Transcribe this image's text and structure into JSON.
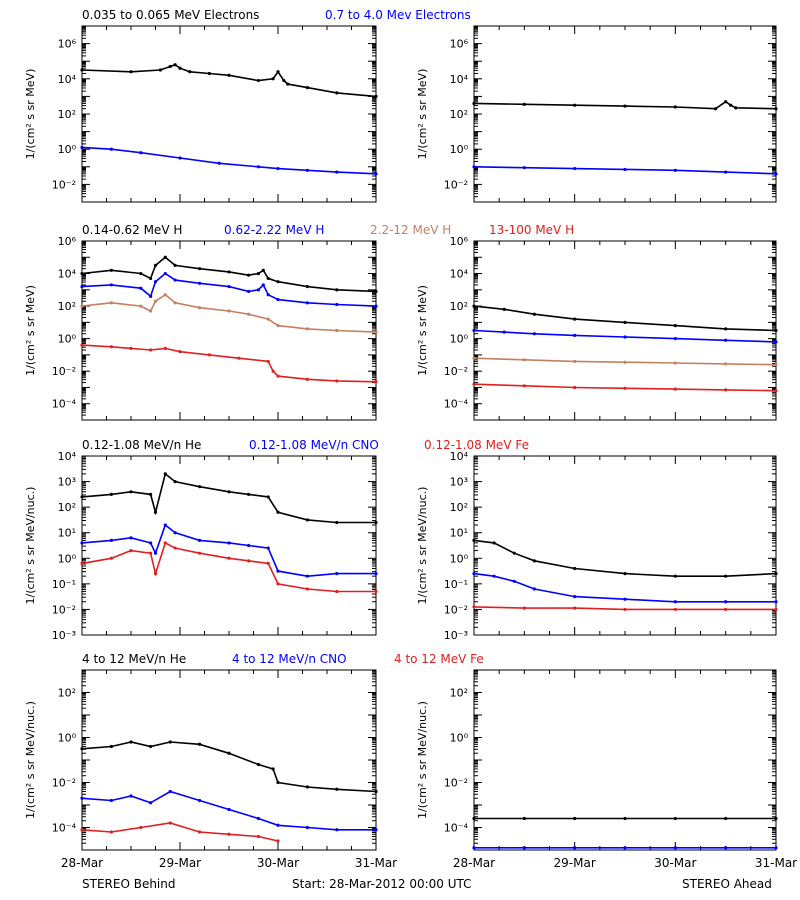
{
  "footer": {
    "left": "STEREO Behind",
    "center": "Start: 28-Mar-2012 00:00 UTC",
    "right": "STEREO Ahead"
  },
  "chart_data": [
    {
      "type": "scatter",
      "panel": "row1-left",
      "ylabel": "1/(cm² s sr MeV)",
      "log_y": true,
      "ylim_exp": [
        -3,
        7
      ],
      "y_ticks_exp": [
        -2,
        0,
        2,
        4,
        6
      ],
      "x_ticks": [
        "28-Mar",
        "29-Mar",
        "30-Mar",
        "31-Mar"
      ],
      "xlim": [
        0,
        3
      ],
      "legend": [
        {
          "text": "0.035 to 0.065 MeV Electrons",
          "color": "#000000"
        },
        {
          "text": "0.7 to 4.0 Mev Electrons",
          "color": "#0000ff"
        }
      ],
      "series": [
        {
          "name": "0.035 to 0.065 MeV Electrons",
          "color": "#000000",
          "x": [
            0,
            0.5,
            0.8,
            0.9,
            0.95,
            1.0,
            1.1,
            1.3,
            1.5,
            1.8,
            1.95,
            2.0,
            2.06,
            2.1,
            2.3,
            2.6,
            3.0
          ],
          "y": [
            4.5,
            4.4,
            4.5,
            4.7,
            4.8,
            4.6,
            4.4,
            4.3,
            4.2,
            3.9,
            4.0,
            4.4,
            3.9,
            3.7,
            3.5,
            3.2,
            3.0
          ]
        },
        {
          "name": "0.7 to 4.0 Mev Electrons",
          "color": "#0000ff",
          "x": [
            0,
            0.3,
            0.6,
            1.0,
            1.4,
            1.8,
            2.0,
            2.3,
            2.6,
            3.0
          ],
          "y": [
            0.1,
            0.0,
            -0.2,
            -0.5,
            -0.8,
            -1.0,
            -1.1,
            -1.2,
            -1.3,
            -1.4
          ]
        }
      ]
    },
    {
      "type": "scatter",
      "panel": "row1-right",
      "ylabel": "1/(cm² s sr MeV)",
      "log_y": true,
      "ylim_exp": [
        -3,
        7
      ],
      "y_ticks_exp": [
        -2,
        0,
        2,
        4,
        6
      ],
      "x_ticks": [
        "28-Mar",
        "29-Mar",
        "30-Mar",
        "31-Mar"
      ],
      "xlim": [
        0,
        3
      ],
      "series": [
        {
          "name": "0.035 to 0.065 MeV Electrons",
          "color": "#000000",
          "x": [
            0,
            0.5,
            1.0,
            1.5,
            2.0,
            2.4,
            2.5,
            2.55,
            2.6,
            3.0
          ],
          "y": [
            2.6,
            2.55,
            2.5,
            2.45,
            2.4,
            2.3,
            2.7,
            2.5,
            2.35,
            2.3
          ]
        },
        {
          "name": "0.7 to 4.0 Mev Electrons",
          "color": "#0000ff",
          "x": [
            0,
            0.5,
            1.0,
            1.5,
            2.0,
            2.5,
            3.0
          ],
          "y": [
            -1.0,
            -1.05,
            -1.1,
            -1.15,
            -1.2,
            -1.3,
            -1.4
          ]
        }
      ]
    },
    {
      "type": "scatter",
      "panel": "row2-left",
      "ylabel": "1/(cm² s sr MeV)",
      "log_y": true,
      "ylim_exp": [
        -5,
        6
      ],
      "y_ticks_exp": [
        -4,
        -2,
        0,
        2,
        4,
        6
      ],
      "x_ticks": [
        "28-Mar",
        "29-Mar",
        "30-Mar",
        "31-Mar"
      ],
      "xlim": [
        0,
        3
      ],
      "legend": [
        {
          "text": "0.14-0.62 MeV H",
          "color": "#000000"
        },
        {
          "text": "0.62-2.22 MeV H",
          "color": "#0000ff"
        },
        {
          "text": "2.2-12 MeV H",
          "color": "#c48060"
        },
        {
          "text": "13-100 MeV H",
          "color": "#e02020"
        }
      ],
      "series": [
        {
          "name": "0.14-0.62 MeV H",
          "color": "#000000",
          "x": [
            0,
            0.3,
            0.6,
            0.7,
            0.75,
            0.85,
            0.95,
            1.2,
            1.5,
            1.7,
            1.8,
            1.85,
            1.9,
            2.0,
            2.3,
            2.6,
            3.0
          ],
          "y": [
            4.0,
            4.2,
            4.0,
            3.7,
            4.5,
            5.0,
            4.5,
            4.3,
            4.1,
            3.9,
            4.0,
            4.2,
            3.7,
            3.5,
            3.2,
            3.0,
            2.9
          ]
        },
        {
          "name": "0.62-2.22 MeV H",
          "color": "#0000ff",
          "x": [
            0,
            0.3,
            0.6,
            0.7,
            0.75,
            0.85,
            0.95,
            1.2,
            1.5,
            1.7,
            1.8,
            1.85,
            1.9,
            2.0,
            2.3,
            2.6,
            3.0
          ],
          "y": [
            3.2,
            3.3,
            3.1,
            2.6,
            3.5,
            4.0,
            3.6,
            3.4,
            3.2,
            2.9,
            3.0,
            3.3,
            2.7,
            2.4,
            2.2,
            2.1,
            2.0
          ]
        },
        {
          "name": "2.2-12 MeV H",
          "color": "#c48060",
          "x": [
            0,
            0.3,
            0.6,
            0.7,
            0.75,
            0.85,
            0.95,
            1.2,
            1.5,
            1.7,
            1.9,
            2.0,
            2.3,
            2.6,
            3.0
          ],
          "y": [
            2.0,
            2.2,
            2.0,
            1.7,
            2.3,
            2.7,
            2.2,
            1.9,
            1.7,
            1.5,
            1.2,
            0.8,
            0.6,
            0.5,
            0.4
          ]
        },
        {
          "name": "13-100 MeV H",
          "color": "#e02020",
          "x": [
            0,
            0.3,
            0.5,
            0.7,
            0.85,
            1.0,
            1.3,
            1.6,
            1.9,
            1.95,
            2.0,
            2.3,
            2.6,
            3.0
          ],
          "y": [
            -0.4,
            -0.5,
            -0.6,
            -0.7,
            -0.6,
            -0.8,
            -1.0,
            -1.2,
            -1.4,
            -2.0,
            -2.3,
            -2.5,
            -2.6,
            -2.65
          ]
        }
      ]
    },
    {
      "type": "scatter",
      "panel": "row2-right",
      "ylabel": "1/(cm² s sr MeV)",
      "log_y": true,
      "ylim_exp": [
        -5,
        6
      ],
      "y_ticks_exp": [
        -4,
        -2,
        0,
        2,
        4,
        6
      ],
      "x_ticks": [
        "28-Mar",
        "29-Mar",
        "30-Mar",
        "31-Mar"
      ],
      "xlim": [
        0,
        3
      ],
      "series": [
        {
          "name": "0.14-0.62 MeV H",
          "color": "#000000",
          "x": [
            0,
            0.3,
            0.6,
            1.0,
            1.5,
            2.0,
            2.5,
            3.0
          ],
          "y": [
            2.0,
            1.8,
            1.5,
            1.2,
            1.0,
            0.8,
            0.6,
            0.5
          ]
        },
        {
          "name": "0.62-2.22 MeV H",
          "color": "#0000ff",
          "x": [
            0,
            0.3,
            0.6,
            1.0,
            1.5,
            2.0,
            2.5,
            3.0
          ],
          "y": [
            0.5,
            0.4,
            0.3,
            0.2,
            0.1,
            0.0,
            -0.1,
            -0.2
          ]
        },
        {
          "name": "2.2-12 MeV H",
          "color": "#c48060",
          "x": [
            0,
            0.5,
            1.0,
            1.5,
            2.0,
            2.5,
            3.0
          ],
          "y": [
            -1.2,
            -1.3,
            -1.4,
            -1.45,
            -1.5,
            -1.55,
            -1.6
          ]
        },
        {
          "name": "13-100 MeV H",
          "color": "#e02020",
          "x": [
            0,
            0.5,
            1.0,
            1.5,
            2.0,
            2.5,
            3.0
          ],
          "y": [
            -2.8,
            -2.9,
            -3.0,
            -3.05,
            -3.1,
            -3.15,
            -3.2
          ]
        }
      ]
    },
    {
      "type": "scatter",
      "panel": "row3-left",
      "ylabel": "1/(cm² s sr MeV/nuc.)",
      "log_y": true,
      "ylim_exp": [
        -3,
        4
      ],
      "y_ticks_exp": [
        -3,
        -2,
        -1,
        0,
        1,
        2,
        3,
        4
      ],
      "x_ticks": [
        "28-Mar",
        "29-Mar",
        "30-Mar",
        "31-Mar"
      ],
      "xlim": [
        0,
        3
      ],
      "legend": [
        {
          "text": "0.12-1.08 MeV/n He",
          "color": "#000000"
        },
        {
          "text": "0.12-1.08 MeV/n CNO",
          "color": "#0000ff"
        },
        {
          "text": "0.12-1.08 MeV Fe",
          "color": "#e02020"
        }
      ],
      "series": [
        {
          "name": "0.12-1.08 MeV/n He",
          "color": "#000000",
          "x": [
            0,
            0.3,
            0.5,
            0.7,
            0.75,
            0.85,
            0.95,
            1.2,
            1.5,
            1.7,
            1.9,
            2.0,
            2.3,
            2.6,
            3.0
          ],
          "y": [
            2.4,
            2.5,
            2.6,
            2.5,
            1.8,
            3.3,
            3.0,
            2.8,
            2.6,
            2.5,
            2.4,
            1.8,
            1.5,
            1.4,
            1.4
          ]
        },
        {
          "name": "0.12-1.08 MeV/n CNO",
          "color": "#0000ff",
          "x": [
            0,
            0.3,
            0.5,
            0.7,
            0.75,
            0.85,
            0.95,
            1.2,
            1.5,
            1.7,
            1.9,
            2.0,
            2.3,
            2.6,
            3.0
          ],
          "y": [
            0.6,
            0.7,
            0.8,
            0.6,
            0.2,
            1.3,
            1.0,
            0.7,
            0.6,
            0.5,
            0.4,
            -0.5,
            -0.7,
            -0.6,
            -0.6
          ]
        },
        {
          "name": "0.12-1.08 MeV Fe",
          "color": "#e02020",
          "x": [
            0,
            0.3,
            0.5,
            0.7,
            0.75,
            0.85,
            0.95,
            1.2,
            1.5,
            1.7,
            1.9,
            2.0,
            2.3,
            2.6,
            3.0
          ],
          "y": [
            -0.2,
            0.0,
            0.3,
            0.2,
            -0.6,
            0.6,
            0.4,
            0.2,
            0.0,
            -0.1,
            -0.2,
            -1.0,
            -1.2,
            -1.3,
            -1.3
          ]
        }
      ]
    },
    {
      "type": "scatter",
      "panel": "row3-right",
      "ylabel": "1/(cm² s sr MeV/nuc.)",
      "log_y": true,
      "ylim_exp": [
        -3,
        4
      ],
      "y_ticks_exp": [
        -3,
        -2,
        -1,
        0,
        1,
        2,
        3,
        4
      ],
      "x_ticks": [
        "28-Mar",
        "29-Mar",
        "30-Mar",
        "31-Mar"
      ],
      "xlim": [
        0,
        3
      ],
      "series": [
        {
          "name": "0.12-1.08 MeV/n He",
          "color": "#000000",
          "x": [
            0,
            0.2,
            0.4,
            0.6,
            1.0,
            1.5,
            2.0,
            2.5,
            3.0
          ],
          "y": [
            0.7,
            0.6,
            0.2,
            -0.1,
            -0.4,
            -0.6,
            -0.7,
            -0.7,
            -0.6
          ]
        },
        {
          "name": "0.12-1.08 MeV/n CNO",
          "color": "#0000ff",
          "x": [
            0,
            0.2,
            0.4,
            0.6,
            1.0,
            1.5,
            2.0,
            2.5,
            3.0
          ],
          "y": [
            -0.6,
            -0.7,
            -0.9,
            -1.2,
            -1.5,
            -1.6,
            -1.7,
            -1.7,
            -1.7
          ]
        },
        {
          "name": "0.12-1.08 MeV Fe",
          "color": "#e02020",
          "x": [
            0,
            0.5,
            1.0,
            1.5,
            2.0,
            2.5,
            3.0
          ],
          "y": [
            -1.9,
            -1.95,
            -1.95,
            -2.0,
            -2.0,
            -2.0,
            -2.0
          ]
        }
      ]
    },
    {
      "type": "scatter",
      "panel": "row4-left",
      "ylabel": "1/(cm² s sr MeV/nuc.)",
      "log_y": true,
      "ylim_exp": [
        -5,
        3
      ],
      "y_ticks_exp": [
        -4,
        -2,
        0,
        2
      ],
      "x_ticks": [
        "28-Mar",
        "29-Mar",
        "30-Mar",
        "31-Mar"
      ],
      "xlim": [
        0,
        3
      ],
      "legend": [
        {
          "text": "4 to 12 MeV/n He",
          "color": "#000000"
        },
        {
          "text": "4 to 12 MeV/n CNO",
          "color": "#0000ff"
        },
        {
          "text": "4 to 12 MeV Fe",
          "color": "#e02020"
        }
      ],
      "series": [
        {
          "name": "4 to 12 MeV/n He",
          "color": "#000000",
          "x": [
            0,
            0.3,
            0.5,
            0.7,
            0.9,
            1.2,
            1.5,
            1.8,
            1.95,
            2.0,
            2.3,
            2.6,
            3.0
          ],
          "y": [
            -0.5,
            -0.4,
            -0.2,
            -0.4,
            -0.2,
            -0.3,
            -0.7,
            -1.2,
            -1.4,
            -2.0,
            -2.2,
            -2.3,
            -2.4
          ]
        },
        {
          "name": "4 to 12 MeV/n CNO",
          "color": "#0000ff",
          "x": [
            0,
            0.3,
            0.5,
            0.7,
            0.9,
            1.2,
            1.5,
            1.8,
            2.0,
            2.3,
            2.6,
            3.0
          ],
          "y": [
            -2.7,
            -2.8,
            -2.6,
            -2.9,
            -2.4,
            -2.8,
            -3.2,
            -3.6,
            -3.9,
            -4.0,
            -4.1,
            -4.1
          ]
        },
        {
          "name": "4 to 12 MeV Fe",
          "color": "#e02020",
          "x": [
            0,
            0.3,
            0.6,
            0.9,
            1.2,
            1.5,
            1.8,
            2.0
          ],
          "y": [
            -4.1,
            -4.2,
            -4.0,
            -3.8,
            -4.2,
            -4.3,
            -4.4,
            -4.6
          ]
        }
      ]
    },
    {
      "type": "scatter",
      "panel": "row4-right",
      "ylabel": "1/(cm² s sr MeV/nuc.)",
      "log_y": true,
      "ylim_exp": [
        -5,
        3
      ],
      "y_ticks_exp": [
        -4,
        -2,
        0,
        2
      ],
      "x_ticks": [
        "28-Mar",
        "29-Mar",
        "30-Mar",
        "31-Mar"
      ],
      "xlim": [
        0,
        3
      ],
      "series": [
        {
          "name": "4 to 12 MeV/n He",
          "color": "#000000",
          "x": [
            0,
            0.5,
            1.0,
            1.5,
            2.0,
            2.5,
            3.0
          ],
          "y": [
            -3.6,
            -3.6,
            -3.6,
            -3.6,
            -3.6,
            -3.6,
            -3.6
          ]
        },
        {
          "name": "4 to 12 MeV/n CNO",
          "color": "#0000ff",
          "x": [
            0,
            0.5,
            1.0,
            1.5,
            2.0,
            2.5,
            3.0
          ],
          "y": [
            -4.9,
            -4.9,
            -4.9,
            -4.9,
            -4.9,
            -4.9,
            -4.9
          ]
        }
      ]
    }
  ]
}
